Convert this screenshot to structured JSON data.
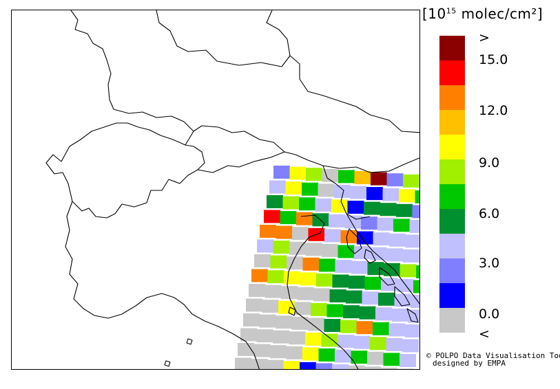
{
  "legend": {
    "unit_prefix": "[10",
    "unit_exp": "15",
    "unit_suffix": " molec/cm²]",
    "labels": [
      ">",
      "15.0",
      "12.0",
      "9.0",
      "6.0",
      "3.0",
      "0.0",
      "<"
    ],
    "colors": [
      "#8b0000",
      "#ff0000",
      "#ff8000",
      "#ffc000",
      "#ffff00",
      "#a0f000",
      "#00c800",
      "#009030",
      "#c0c0ff",
      "#8080ff",
      "#0000ff",
      "#c8c8c8"
    ],
    "color_names": [
      "above-range",
      "15-plus",
      "13.5-15",
      "12-13.5",
      "10.5-12",
      "9-10.5",
      "7.5-9",
      "6-7.5",
      "4.5-6",
      "3-4.5",
      "1.5-3",
      "below-range"
    ]
  },
  "credit": {
    "line1": "© POLPO Data Visualisation Tool",
    "line2": "designed by EMPA"
  },
  "grid": {
    "rows": [
      [
        "#8080ff",
        "#ffff00",
        "#a0f000",
        "#c8c8c8",
        "#00c800",
        "#ffc000",
        "#8b0000",
        "#8080ff",
        "#a0f000"
      ],
      [
        "#c0c0ff",
        "#ffff00",
        "#00c800",
        "#c8c8c8",
        "#c0c0ff",
        "#c0c0ff",
        "#0000ff",
        "#c0c0ff",
        "#ffff00",
        "#00c800"
      ],
      [
        "#009030",
        "#a0f000",
        "#00c800",
        "#c0c0ff",
        "#ffff00",
        "#0000ff",
        "#009030",
        "#009030",
        "#009030",
        "#8080ff"
      ],
      [
        "#ff0000",
        "#00c800",
        "#ff8000",
        "#009030",
        "#c0c0ff",
        "#c0c0ff",
        "#8080ff",
        "#c0c0ff",
        "#00c800",
        "#c0c0ff"
      ],
      [
        "#ff8000",
        "#ff8000",
        "#c8c8c8",
        "#ff0000",
        "#c0c0ff",
        "#ff8000",
        "#0000ff",
        "#c0c0ff",
        "#c0c0ff",
        "#c0c0ff",
        "#00c800"
      ],
      [
        "#c0c0ff",
        "#a0f000",
        "#c8c8c8",
        "#c8c8c8",
        "#c8c8c8",
        "#00c800",
        "#c0c0ff",
        "#c0c0ff",
        "#c0c0ff",
        "#c0c0ff",
        "#c0c0ff"
      ],
      [
        "#c8c8c8",
        "#a0f000",
        "#c8c8c8",
        "#ff8000",
        "#00c800",
        "#c0c0ff",
        "#c0c0ff",
        "#009030",
        "#009030",
        "#a0f000",
        "#00c800"
      ],
      [
        "#ff8000",
        "#a0f000",
        "#ffff00",
        "#ffff00",
        "#a0f000",
        "#009030",
        "#009030",
        "#00c800",
        "#c0c0ff",
        "#c0c0ff",
        "#00c800"
      ],
      [
        "#c8c8c8",
        "#c8c8c8",
        "#c8c8c8",
        "#c8c8c8",
        "#c8c8c8",
        "#009030",
        "#009030",
        "#c0c0ff",
        "#009030",
        "#c0c0ff",
        "#c0c0ff"
      ],
      [
        "#c8c8c8",
        "#c8c8c8",
        "#ffff00",
        "#c8c8c8",
        "#a0f000",
        "#00c800",
        "#009030",
        "#009030",
        "#c0c0ff",
        "#c0c0ff",
        "#c0c0ff"
      ],
      [
        "#c8c8c8",
        "#c8c8c8",
        "#c8c8c8",
        "#c8c8c8",
        "#c8c8c8",
        "#009030",
        "#a0f000",
        "#ff8000",
        "#00c800",
        "#c0c0ff",
        "#c0c0ff"
      ],
      [
        "#c8c8c8",
        "#c8c8c8",
        "#c8c8c8",
        "#c8c8c8",
        "#ffff00",
        "#a0f000",
        "#c0c0ff",
        "#c0c0ff",
        "#a0f000",
        "#c0c0ff",
        "#c0c0ff"
      ],
      [
        "#c8c8c8",
        "#c8c8c8",
        "#c8c8c8",
        "#c8c8c8",
        "#ffff00",
        "#00c800",
        "#c0c0ff",
        "#00c800",
        "#c8c8c8",
        "#00c800",
        "#c0c0ff"
      ],
      [
        "#c8c8c8",
        "#c8c8c8",
        "#c8c8c8",
        "#ffff00",
        "#0000ff",
        "#8080ff",
        "#c0c0ff",
        "#c8c8c8",
        "#c8c8c8",
        "#c8c8c8",
        "#c8c8c8"
      ],
      [
        "#c8c8c8",
        "#c8c8c8",
        "#c8c8c8",
        "#c8c8c8",
        "#c8c8c8",
        "#c8c8c8",
        "#c8c8c8",
        "#c8c8c8",
        "#c8c8c8",
        "#c8c8c8",
        "#c8c8c8"
      ]
    ]
  }
}
